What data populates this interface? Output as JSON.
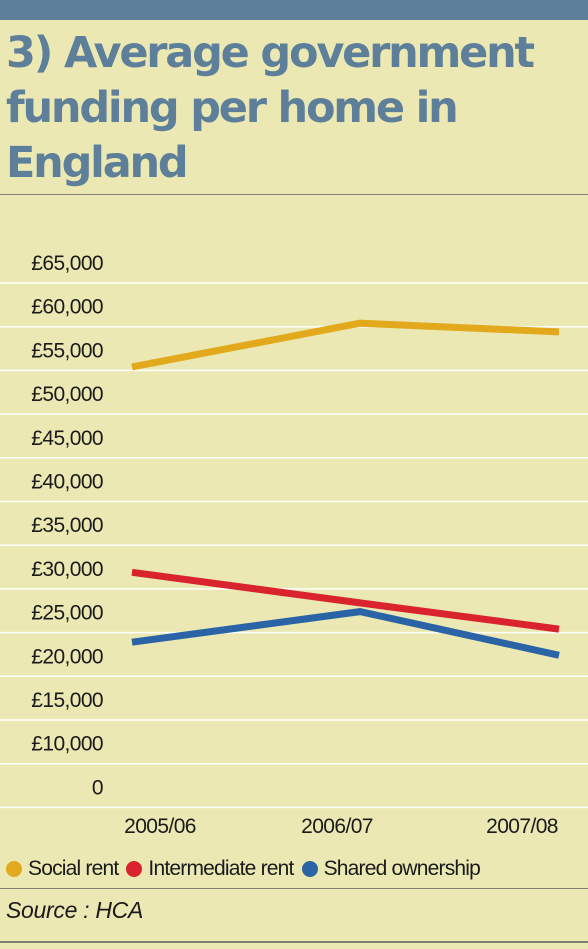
{
  "colors": {
    "background": "#ebe8b4",
    "top_bar": "#5e7f99",
    "title": "#5e7f99",
    "gridline": "#ffffff",
    "axis_text": "#1a1a1a"
  },
  "source": "Source : HCA",
  "chart_data": {
    "type": "line",
    "title": "3) Average government funding per home in England",
    "xlabel": "",
    "ylabel": "",
    "categories": [
      "2005/06",
      "2006/07",
      "2007/08"
    ],
    "ylim": [
      0,
      65000
    ],
    "yticks": [
      0,
      10000,
      15000,
      20000,
      25000,
      30000,
      35000,
      40000,
      45000,
      50000,
      55000,
      60000,
      65000
    ],
    "ytick_labels": [
      "0",
      "£10,000",
      "£15,000",
      "£20,000",
      "£25,000",
      "£30,000",
      "£35,000",
      "£40,000",
      "£45,000",
      "£50,000",
      "£55,000",
      "£60,000",
      "£65,000"
    ],
    "grid": true,
    "legend_position": "bottom",
    "series": [
      {
        "name": "Social rent",
        "color": "#e3a91c",
        "values": [
          53000,
          58000,
          57000
        ]
      },
      {
        "name": "Intermediate rent",
        "color": "#d9232d",
        "values": [
          29500,
          26000,
          23000
        ]
      },
      {
        "name": "Shared ownership",
        "color": "#2a64a6",
        "values": [
          21500,
          25000,
          20000
        ]
      }
    ]
  }
}
